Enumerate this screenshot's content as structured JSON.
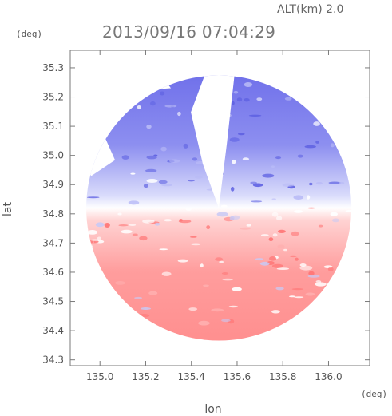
{
  "header": {
    "altitude_label": "ALT(km) 2.0",
    "timestamp": "2013/09/16 07:04:29"
  },
  "colors": {
    "approach": "#6f72e6",
    "recede": "#ff8888",
    "neutral": "#ffffff",
    "frame": "#7a7a7a",
    "text": "#555555"
  },
  "chart_data": {
    "type": "heatmap",
    "title": "2013/09/16 07:04:29",
    "annotation": "ALT(km) 2.0",
    "xlabel": "lon",
    "ylabel": "lat",
    "x_unit": "(deg)",
    "y_unit": "(deg)",
    "xlim": [
      134.87,
      136.18
    ],
    "ylim": [
      34.28,
      35.36
    ],
    "xticks": [
      135.0,
      135.2,
      135.4,
      135.6,
      135.8,
      136.0
    ],
    "xtick_labels": [
      "135.0",
      "135.2",
      "135.4",
      "135.6",
      "135.8",
      "136.0"
    ],
    "yticks": [
      34.3,
      34.4,
      34.5,
      34.6,
      34.7,
      34.8,
      34.9,
      35.0,
      35.1,
      35.2,
      35.3
    ],
    "ytick_labels": [
      "34.3",
      "34.4",
      "34.5",
      "34.6",
      "34.7",
      "34.8",
      "34.9",
      "35.0",
      "35.1",
      "35.2",
      "35.3"
    ],
    "grid": false,
    "radar_center": {
      "lon": 135.52,
      "lat": 34.82
    },
    "radar_range_deg": 0.58,
    "field_description_colors": {
      "north_sector": "blue",
      "south_sector": "red"
    }
  }
}
